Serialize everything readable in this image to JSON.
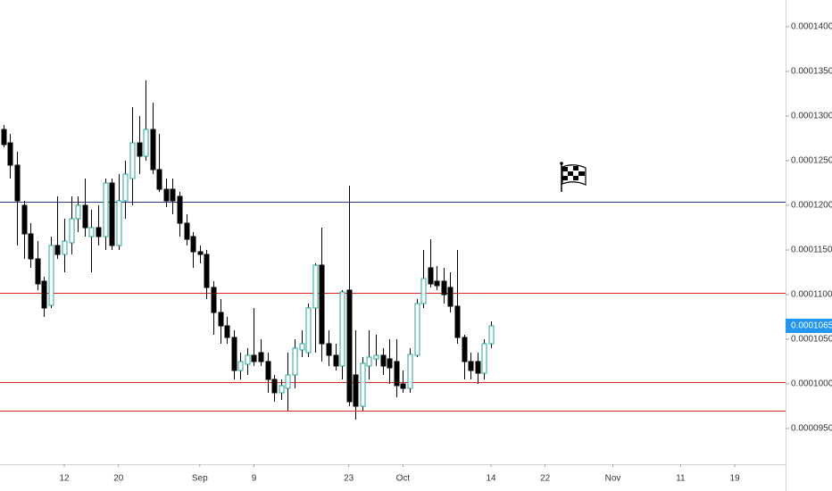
{
  "chart_data": {
    "type": "candlestick",
    "categories": [
      null,
      null,
      null,
      null,
      null,
      null,
      null,
      null,
      null,
      "12",
      null,
      null,
      null,
      null,
      null,
      null,
      null,
      "20",
      null,
      null,
      null,
      null,
      null,
      null,
      null,
      null,
      null,
      null,
      null,
      "Sep",
      null,
      null,
      null,
      null,
      null,
      null,
      null,
      "9",
      null,
      null,
      null,
      null,
      null,
      null,
      null,
      null,
      null,
      null,
      null,
      null,
      null,
      "23",
      null,
      null,
      null,
      null,
      null,
      null,
      null,
      "Oct",
      null,
      null,
      null,
      null,
      null,
      null,
      null,
      null,
      null,
      null,
      null,
      null,
      "14",
      null,
      null,
      null,
      null,
      null,
      null,
      null,
      "22",
      null,
      null,
      null,
      null,
      null,
      null,
      null,
      null,
      null,
      "Nov",
      null,
      null,
      null,
      null,
      null,
      null,
      null,
      null,
      null,
      "11",
      null,
      null,
      null,
      null,
      null,
      null,
      null,
      "19",
      null,
      null,
      null,
      null,
      null,
      null,
      null
    ],
    "open": [
      0.0001285,
      0.000127,
      0.0001245,
      0.00012,
      0.0001168,
      0.000114,
      0.0001115,
      0.0001088,
      0.0001155,
      0.0001145,
      0.0001158,
      0.0001185,
      0.00012,
      0.0001165,
      0.0001175,
      0.0001165,
      0.0001225,
      0.0001155,
      0.0001205,
      0.000123,
      0.000127,
      0.0001255,
      0.0001285,
      0.000124,
      0.0001218,
      0.0001218,
      0.000121,
      0.000118,
      0.0001165,
      0.0001148,
      0.0001145,
      0.0001108,
      0.000108,
      0.0001065,
      0.0001052,
      0.0001015,
      0.0001022,
      0.0001032,
      0.0001035,
      0.0001025,
      0.0001005,
      9.9e-05,
      9.95e-05,
      0.000101,
      0.0001038,
      0.0001035,
      0.0001085,
      0.0001133,
      0.0001045,
      0.0001032,
      0.000102,
      0.0001105,
      0.000101,
      9.75e-05,
      0.000102,
      0.0001028,
      0.0001032,
      0.0001028,
      0.0001025,
      0.0001,
      9.95e-05,
      0.0001032,
      0.000109,
      0.000113,
      0.0001115,
      0.0001115,
      0.0001108,
      0.0001087,
      0.0001052,
      0.0001025,
      0.0001025,
      0.0001012,
      0.0001045,
      null,
      null,
      null,
      null,
      null,
      null,
      null,
      null,
      null,
      null,
      null,
      null,
      null,
      null,
      null,
      null,
      null,
      null,
      null,
      null,
      null,
      null,
      null,
      null,
      null,
      null,
      null,
      null,
      null,
      null,
      null,
      null,
      null,
      null,
      null,
      null,
      null,
      null,
      null,
      null,
      null,
      null,
      null
    ],
    "high": [
      0.000129,
      0.000128,
      0.000126,
      0.0001205,
      0.000118,
      0.000116,
      0.000112,
      0.0001165,
      0.000121,
      0.0001185,
      0.000121,
      0.000121,
      0.000123,
      0.0001195,
      0.00012,
      0.000123,
      0.000123,
      0.0001235,
      0.000125,
      0.000131,
      0.00013,
      0.000134,
      0.0001315,
      0.000128,
      0.000123,
      0.000123,
      0.0001215,
      0.000119,
      0.000117,
      0.0001155,
      0.000115,
      0.0001115,
      0.0001095,
      0.0001075,
      0.000106,
      0.0001035,
      0.000104,
      0.0001085,
      0.000105,
      0.0001035,
      0.000101,
      0.0001005,
      0.0001035,
      0.000105,
      0.000106,
      0.000109,
      0.0001135,
      0.0001175,
      0.000106,
      0.0001045,
      0.0001105,
      0.0001222,
      0.000106,
      0.000103,
      0.000106,
      0.0001055,
      0.000104,
      0.000105,
      0.000105,
      0.0001015,
      0.000104,
      0.0001095,
      0.000115,
      0.0001162,
      0.0001132,
      0.000113,
      0.0001125,
      0.000115,
      0.0001055,
      0.0001035,
      0.0001035,
      0.000105,
      0.000107,
      null,
      null,
      null,
      null,
      null,
      null,
      null,
      null,
      null,
      null,
      null,
      null,
      null,
      null,
      null,
      null,
      null,
      null,
      null,
      null,
      null,
      null,
      null,
      null,
      null,
      null,
      null,
      null,
      null,
      null,
      null,
      null,
      null,
      null,
      null,
      null,
      null,
      null,
      null,
      null,
      null,
      null,
      null
    ],
    "low": [
      0.0001265,
      0.000123,
      0.0001155,
      0.000114,
      0.000113,
      0.0001105,
      0.0001075,
      0.0001085,
      0.000114,
      0.0001125,
      0.0001145,
      0.000117,
      0.0001165,
      0.0001125,
      0.0001155,
      0.000115,
      0.000115,
      0.000115,
      0.0001185,
      0.00012,
      0.0001235,
      0.000125,
      0.0001235,
      0.0001215,
      0.0001198,
      0.000119,
      0.0001165,
      0.0001155,
      0.000113,
      0.0001135,
      0.0001095,
      0.0001055,
      0.0001045,
      0.0001045,
      0.0001005,
      0.0001005,
      0.000101,
      0.000102,
      0.000102,
      9.9e-05,
      9.8e-05,
      9.82e-05,
      9.7e-05,
      9.95e-05,
      0.000103,
      0.000103,
      0.0001035,
      0.0001025,
      0.000102,
      0.0001015,
      0.0001005,
      9.75e-05,
      9.6e-05,
      9.7e-05,
      0.0001005,
      0.000102,
      0.000101,
      0.0001,
      9.85e-05,
      9.9e-05,
      9.9e-05,
      0.000103,
      0.0001085,
      0.0001108,
      0.0001105,
      0.000109,
      0.000108,
      0.0001045,
      0.0001005,
      0.0001005,
      0.0001,
      0.0001005,
      0.000104,
      null,
      null,
      null,
      null,
      null,
      null,
      null,
      null,
      null,
      null,
      null,
      null,
      null,
      null,
      null,
      null,
      null,
      null,
      null,
      null,
      null,
      null,
      null,
      null,
      null,
      null,
      null,
      null,
      null,
      null,
      null,
      null,
      null,
      null,
      null,
      null,
      null,
      null,
      null,
      null,
      null,
      null,
      null
    ],
    "close": [
      0.0001268,
      0.0001245,
      0.0001205,
      0.0001168,
      0.000114,
      0.0001112,
      0.0001085,
      0.0001155,
      0.0001145,
      0.000116,
      0.0001185,
      0.00012,
      0.0001175,
      0.0001175,
      0.0001165,
      0.0001225,
      0.0001155,
      0.0001205,
      0.0001235,
      0.000127,
      0.0001255,
      0.0001285,
      0.000124,
      0.0001218,
      0.0001205,
      0.0001205,
      0.000118,
      0.0001162,
      0.0001148,
      0.0001145,
      0.0001108,
      0.000108,
      0.0001065,
      0.0001052,
      0.0001015,
      0.0001025,
      0.0001032,
      0.0001025,
      0.0001025,
      0.0001005,
      9.9e-05,
      9.98e-05,
      0.000101,
      0.000104,
      0.0001045,
      0.0001085,
      0.0001133,
      0.0001045,
      0.0001032,
      0.000102,
      0.0001103,
      9.8e-05,
      9.75e-05,
      0.0001023,
      0.000103,
      0.0001032,
      0.000102,
      0.0001018,
      9.98e-05,
      9.95e-05,
      0.0001033,
      0.000109,
      0.0001118,
      0.0001112,
      0.000111,
      0.00011,
      0.0001087,
      0.0001052,
      0.0001025,
      0.0001015,
      0.0001012,
      0.0001045,
      0.0001065,
      null,
      null,
      null,
      null,
      null,
      null,
      null,
      null,
      null,
      null,
      null,
      null,
      null,
      null,
      null,
      null,
      null,
      null,
      null,
      null,
      null,
      null,
      null,
      null,
      null,
      null,
      null,
      null,
      null,
      null,
      null,
      null,
      null,
      null,
      null,
      null,
      null,
      null,
      null,
      null,
      null,
      null,
      null
    ],
    "up_color": "#ffffff",
    "up_border": "#26a69a",
    "down_color": "#000000",
    "wick_color": "#000000",
    "ylim": [
      9.1e-05,
      0.000143
    ],
    "yticks": [
      {
        "value": 0.00014,
        "label": "0.0001400"
      },
      {
        "value": 0.000135,
        "label": "0.0001350"
      },
      {
        "value": 0.00013,
        "label": "0.0001300"
      },
      {
        "value": 0.000125,
        "label": "0.0001250"
      },
      {
        "value": 0.00012,
        "label": "0.0001200"
      },
      {
        "value": 0.000115,
        "label": "0.0001150"
      },
      {
        "value": 0.00011,
        "label": "0.0001100"
      },
      {
        "value": 0.000105,
        "label": "0.0001050"
      },
      {
        "value": 0.0001,
        "label": "0.0001000"
      },
      {
        "value": 9.5e-05,
        "label": "0.0000950"
      }
    ],
    "grid": false,
    "levels": [
      {
        "value": 0.0001204,
        "color": "#2d3a8c"
      },
      {
        "value": 0.0001102,
        "color": "#e02424"
      },
      {
        "value": 0.0001002,
        "color": "#e02424"
      },
      {
        "value": 9.7e-05,
        "color": "#e02424"
      }
    ],
    "current_price": {
      "value": 0.0001065,
      "label": "0.0001065",
      "color": "#2196f3"
    }
  }
}
